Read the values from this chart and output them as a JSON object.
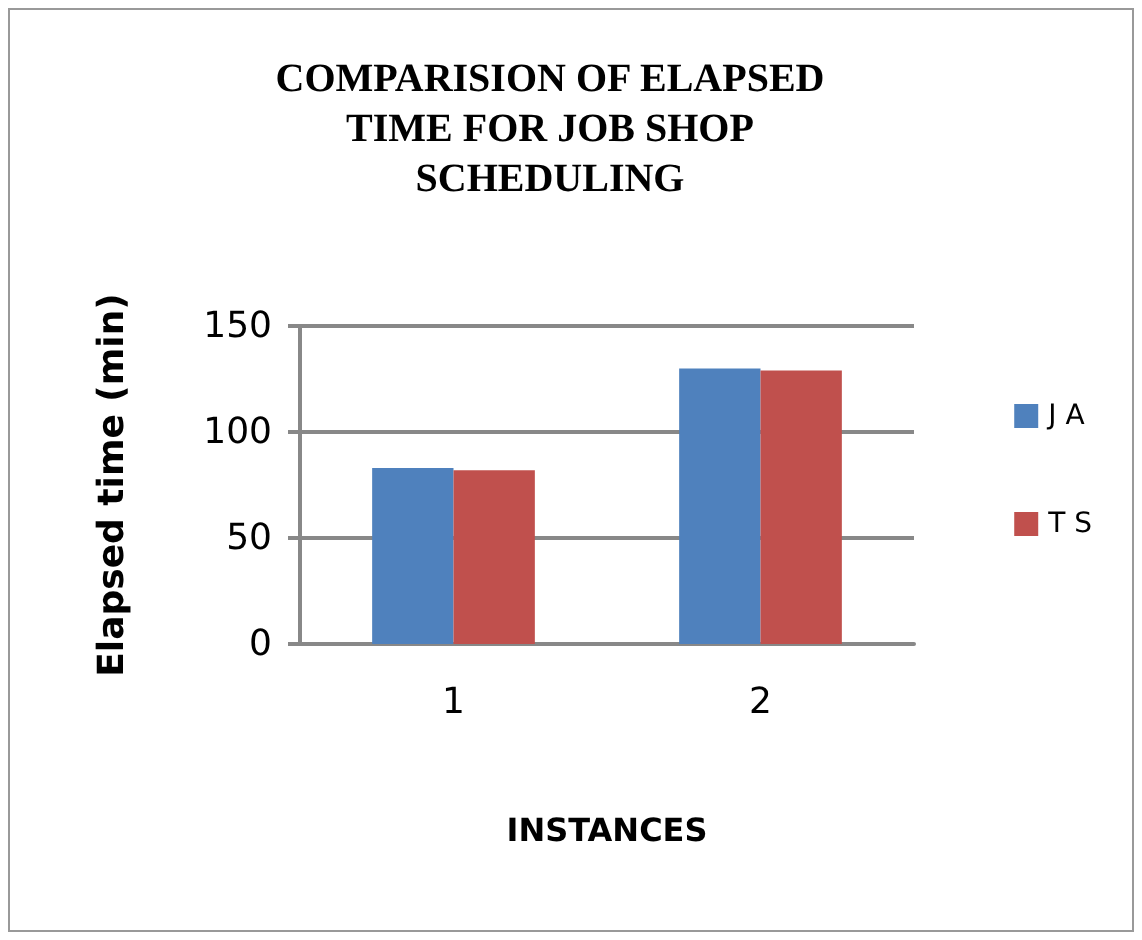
{
  "chart_data": {
    "type": "bar",
    "title": "COMPARISION OF ELAPSED\nTIME FOR JOB SHOP\nSCHEDULING",
    "xlabel": "INSTANCES",
    "ylabel": "Elapsed time (min)",
    "categories": [
      "1",
      "2"
    ],
    "series": [
      {
        "name": "J A",
        "color": "#4f81bd",
        "values": [
          83,
          130
        ]
      },
      {
        "name": "T S",
        "color": "#c0504d",
        "values": [
          82,
          129
        ]
      }
    ],
    "ylim": [
      0,
      150
    ],
    "yticks": [
      0,
      50,
      100,
      150
    ],
    "grid": "y",
    "legend": "right"
  }
}
